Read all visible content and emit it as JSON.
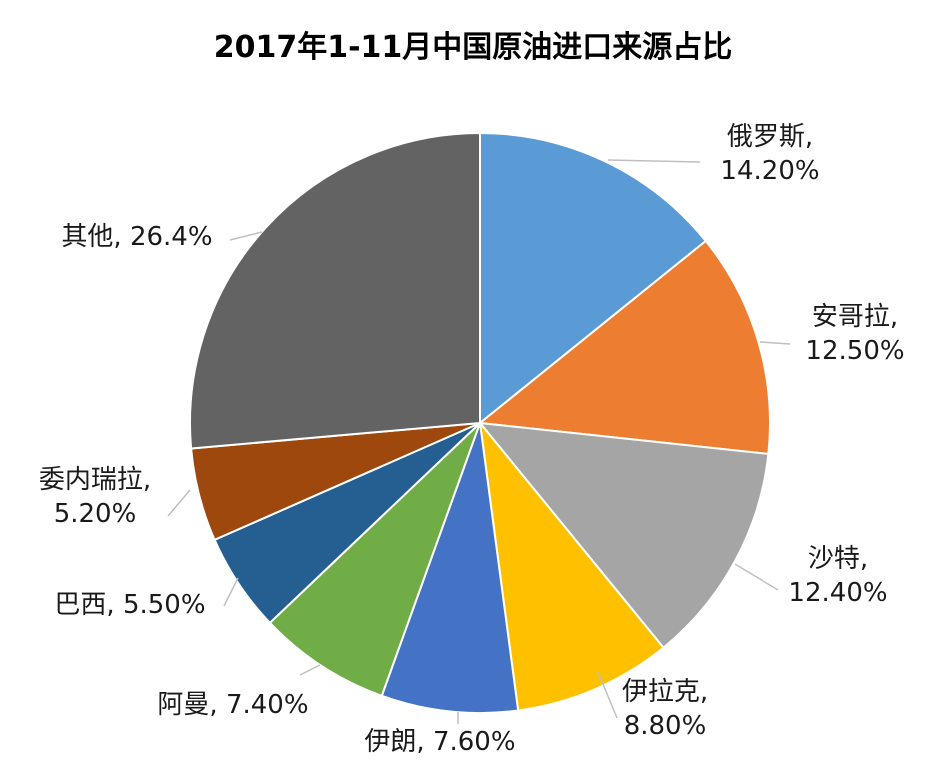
{
  "chart_data": {
    "type": "pie",
    "title": "2017年1-11月中国原油进口来源占比",
    "slices": [
      {
        "name": "俄罗斯",
        "value": 14.2,
        "label_lines": [
          "俄罗斯,",
          "14.20%"
        ],
        "color": "#5B9BD5"
      },
      {
        "name": "安哥拉",
        "value": 12.5,
        "label_lines": [
          "安哥拉,",
          "12.50%"
        ],
        "color": "#ED7D31"
      },
      {
        "name": "沙特",
        "value": 12.4,
        "label_lines": [
          "沙特,",
          "12.40%"
        ],
        "color": "#A5A5A5"
      },
      {
        "name": "伊拉克",
        "value": 8.8,
        "label_lines": [
          "伊拉克,",
          "8.80%"
        ],
        "color": "#FFC000"
      },
      {
        "name": "伊朗",
        "value": 7.6,
        "label_lines": [
          "伊朗, 7.60%"
        ],
        "color": "#4472C4"
      },
      {
        "name": "阿曼",
        "value": 7.4,
        "label_lines": [
          "阿曼, 7.40%"
        ],
        "color": "#70AD47"
      },
      {
        "name": "巴西",
        "value": 5.5,
        "label_lines": [
          "巴西, 5.50%"
        ],
        "color": "#255E91"
      },
      {
        "name": "委内瑞拉",
        "value": 5.2,
        "label_lines": [
          "委内瑞拉,",
          "5.20%"
        ],
        "color": "#9E480E"
      },
      {
        "name": "其他",
        "value": 26.4,
        "label_lines": [
          "其他, 26.4%"
        ],
        "color": "#636363"
      }
    ]
  }
}
